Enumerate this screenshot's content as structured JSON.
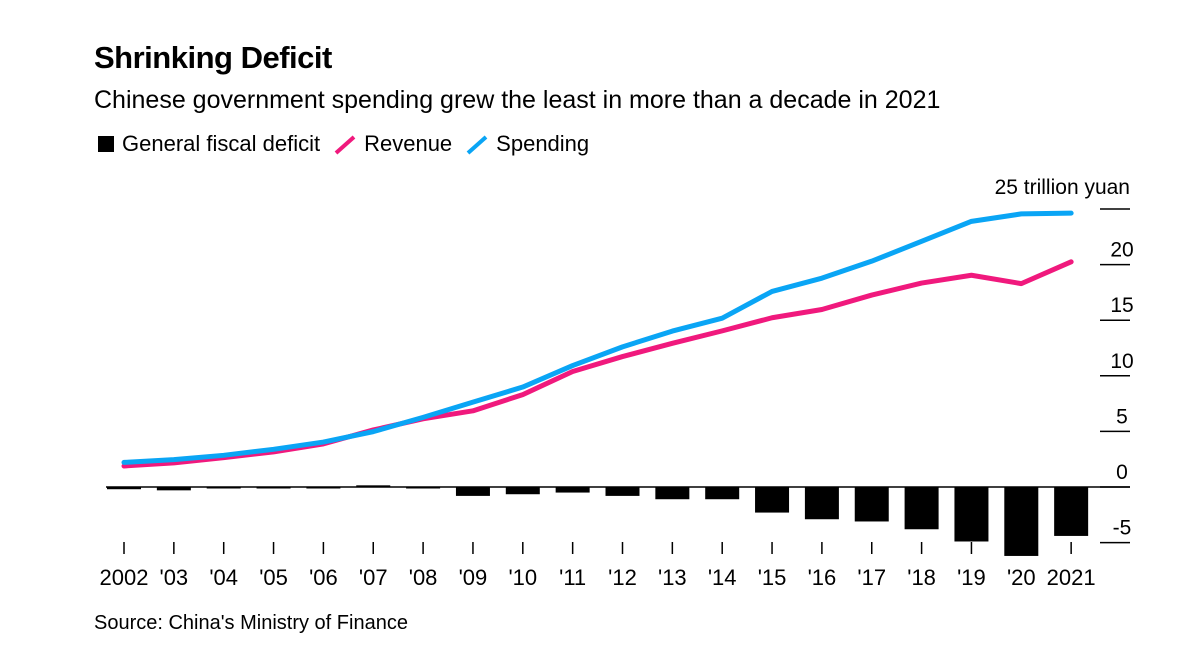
{
  "chart_data": {
    "type": "bar+line",
    "title": "Shrinking Deficit",
    "subtitle": "Chinese government spending grew the least in more than a decade in 2021",
    "unit_label": "25 trillion yuan",
    "source": "Source: China's Ministry of Finance",
    "categories": [
      "2002",
      "'03",
      "'04",
      "'05",
      "'06",
      "'07",
      "'08",
      "'09",
      "'10",
      "'11",
      "'12",
      "'13",
      "'14",
      "'15",
      "'16",
      "'17",
      "'18",
      "'19",
      "'20",
      "2021"
    ],
    "ylim": [
      -6.5,
      25
    ],
    "yticks": [
      25,
      20,
      15,
      10,
      5,
      0,
      -5
    ],
    "ytick_labels": [
      "",
      "20",
      "15",
      "10",
      "5",
      "0",
      "-5"
    ],
    "legend_position": "top-left",
    "series": [
      {
        "name": "General fiscal deficit",
        "type": "bar",
        "color": "#000000",
        "values": [
          -0.2,
          -0.3,
          -0.05,
          -0.05,
          -0.05,
          0.15,
          -0.1,
          -0.8,
          -0.65,
          -0.5,
          -0.8,
          -1.1,
          -1.1,
          -2.3,
          -2.9,
          -3.1,
          -3.8,
          -4.9,
          -6.2,
          -4.4
        ]
      },
      {
        "name": "Revenue",
        "type": "line",
        "color": "#f0197d",
        "values": [
          1.89,
          2.17,
          2.64,
          3.16,
          3.88,
          5.13,
          6.13,
          6.85,
          8.31,
          10.39,
          11.73,
          12.92,
          14.04,
          15.22,
          15.96,
          17.26,
          18.34,
          19.04,
          18.29,
          20.25
        ]
      },
      {
        "name": "Spending",
        "type": "line",
        "color": "#0aa5f5",
        "values": [
          2.21,
          2.46,
          2.85,
          3.39,
          4.04,
          4.98,
          6.26,
          7.63,
          8.99,
          10.92,
          12.6,
          14.02,
          15.18,
          17.59,
          18.78,
          20.31,
          22.09,
          23.89,
          24.56,
          24.63
        ]
      }
    ]
  }
}
